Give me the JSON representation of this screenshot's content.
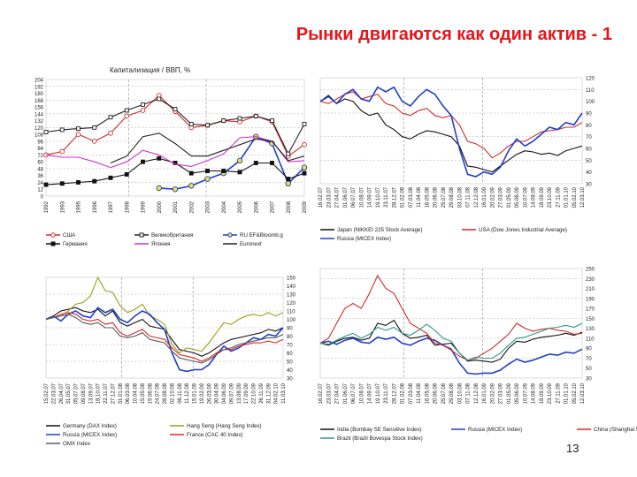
{
  "slide": {
    "title": "Рынки двигаются как один актив - 1",
    "page_number": "13"
  },
  "chart_data": [
    {
      "type": "line",
      "title": "Капитализация / ВВП, %",
      "x": [
        "1992",
        "1993",
        "1995",
        "1996",
        "1997",
        "1998",
        "1999",
        "2000",
        "2001",
        "2002",
        "2003",
        "2004",
        "2005",
        "2006",
        "2007",
        "2008",
        "2009"
      ],
      "ylim": [
        0,
        204
      ],
      "y_ticks": [
        "0",
        "12",
        "24",
        "36",
        "48",
        "60",
        "72",
        "84",
        "96",
        "108",
        "120",
        "132",
        "144",
        "156",
        "168",
        "180",
        "192",
        "204"
      ],
      "series": [
        {
          "name": "США",
          "color": "#d42a2a",
          "marker": "circle",
          "values": [
            72,
            78,
            108,
            96,
            110,
            140,
            150,
            176,
            148,
            120,
            124,
            132,
            130,
            140,
            130,
            70,
            90
          ]
        },
        {
          "name": "Великобритания",
          "color": "#222222",
          "marker": "square",
          "values": [
            112,
            116,
            118,
            120,
            138,
            150,
            160,
            170,
            152,
            126,
            124,
            132,
            136,
            140,
            132,
            74,
            126
          ]
        },
        {
          "name": "RU EF&Bloomb.g",
          "color": "#1f3fc8",
          "marker": "circle-yellow",
          "values": [
            null,
            null,
            null,
            null,
            null,
            null,
            null,
            14,
            12,
            18,
            30,
            40,
            62,
            104,
            92,
            22,
            50
          ]
        },
        {
          "name": "Германия",
          "color": "#111111",
          "marker": "square-black",
          "values": [
            20,
            22,
            24,
            26,
            32,
            38,
            60,
            66,
            58,
            40,
            44,
            44,
            42,
            58,
            58,
            30,
            40
          ]
        },
        {
          "name": "Япония",
          "color": "#d62fc8",
          "marker": "none",
          "values": [
            72,
            68,
            68,
            60,
            50,
            60,
            80,
            72,
            56,
            52,
            62,
            74,
            102,
            104,
            96,
            60,
            62
          ]
        },
        {
          "name": "Euronext",
          "color": "#222222",
          "marker": "none",
          "values": [
            null,
            null,
            null,
            null,
            58,
            70,
            104,
            110,
            92,
            70,
            70,
            80,
            90,
            100,
            96,
            62,
            70
          ]
        }
      ]
    },
    {
      "type": "line",
      "x": [
        "16.02.07",
        "23.03.07",
        "27.04.07",
        "01.06.07",
        "06.07.07",
        "10.08.07",
        "14.09.07",
        "19.10.07",
        "23.11.07",
        "28.12.07",
        "01.02.08",
        "07.03.08",
        "11.04.08",
        "16.05.08",
        "20.06.08",
        "25.07.08",
        "29.08.08",
        "03.10.08",
        "07.11.08",
        "12.12.08",
        "16.01.09",
        "20.02.09",
        "27.03.09",
        "01.05.09",
        "05.06.09",
        "10.07.09",
        "14.08.09",
        "18.09.09",
        "23.10.09",
        "27.11.09",
        "01.01.10",
        "05.02.10",
        "12.03.10"
      ],
      "ylim": [
        30,
        120
      ],
      "y_ticks": [
        "30",
        "40",
        "50",
        "60",
        "70",
        "80",
        "90",
        "100",
        "110",
        "120"
      ],
      "series": [
        {
          "name": "Japan (NIKKEI 225 Stock Average)",
          "color": "#111111",
          "values": [
            100,
            105,
            98,
            102,
            100,
            92,
            88,
            90,
            80,
            76,
            70,
            68,
            72,
            75,
            74,
            72,
            70,
            62,
            45,
            44,
            42,
            40,
            45,
            50,
            55,
            58,
            57,
            55,
            56,
            54,
            58,
            60,
            62
          ]
        },
        {
          "name": "USA (Dow Jones Industrial Average)",
          "color": "#d42a2a",
          "values": [
            100,
            98,
            102,
            106,
            108,
            102,
            104,
            106,
            98,
            96,
            90,
            88,
            92,
            94,
            88,
            86,
            88,
            80,
            66,
            64,
            60,
            52,
            56,
            62,
            66,
            66,
            70,
            74,
            75,
            76,
            78,
            78,
            82
          ]
        },
        {
          "name": "Russia (MICEX Index)",
          "color": "#1f3fc8",
          "values": [
            100,
            104,
            98,
            106,
            110,
            102,
            100,
            112,
            108,
            112,
            100,
            96,
            104,
            110,
            106,
            96,
            88,
            60,
            38,
            36,
            40,
            38,
            44,
            58,
            68,
            62,
            66,
            72,
            78,
            76,
            82,
            80,
            90
          ]
        }
      ]
    },
    {
      "type": "line",
      "x": [
        "15.02.07",
        "22.03.07",
        "26.04.07",
        "31.05.07",
        "05.07.07",
        "09.08.07",
        "13.09.07",
        "18.10.07",
        "22.11.07",
        "27.12.07",
        "31.01.08",
        "06.03.08",
        "10.04.08",
        "15.05.08",
        "19.06.08",
        "24.07.08",
        "28.08.08",
        "02.10.08",
        "06.11.08",
        "11.12.08",
        "15.01.09",
        "19.02.09",
        "26.03.09",
        "30.04.09",
        "04.06.09",
        "09.07.09",
        "13.08.09",
        "17.09.09",
        "22.10.09",
        "26.11.09",
        "31.12.09",
        "04.02.10",
        "11.03.10"
      ],
      "ylim": [
        30,
        150
      ],
      "y_ticks": [
        "30",
        "40",
        "50",
        "60",
        "70",
        "80",
        "90",
        "100",
        "110",
        "120",
        "130",
        "140",
        "150"
      ],
      "series": [
        {
          "name": "Germany (DAX Index)",
          "color": "#111111",
          "values": [
            100,
            104,
            110,
            112,
            114,
            110,
            108,
            112,
            104,
            110,
            96,
            92,
            96,
            100,
            92,
            90,
            88,
            76,
            64,
            62,
            60,
            56,
            60,
            66,
            72,
            76,
            78,
            80,
            82,
            84,
            88,
            86,
            90
          ]
        },
        {
          "name": "Hang Seng (Hang Seng Index)",
          "color": "#9aa01a",
          "values": [
            100,
            102,
            104,
            110,
            118,
            120,
            128,
            150,
            134,
            132,
            116,
            108,
            112,
            118,
            104,
            100,
            94,
            70,
            60,
            66,
            64,
            62,
            72,
            84,
            96,
            94,
            100,
            104,
            106,
            104,
            108,
            104,
            108
          ]
        },
        {
          "name": "Russia (MICEX Index)",
          "color": "#1f3fc8",
          "values": [
            100,
            104,
            98,
            106,
            110,
            104,
            102,
            114,
            108,
            112,
            100,
            96,
            104,
            110,
            106,
            96,
            88,
            60,
            40,
            38,
            40,
            40,
            46,
            58,
            68,
            62,
            66,
            72,
            78,
            76,
            82,
            80,
            90
          ]
        },
        {
          "name": "France (CAC 40 Index)",
          "color": "#d42a2a",
          "values": [
            100,
            102,
            106,
            108,
            106,
            100,
            98,
            100,
            94,
            96,
            84,
            80,
            84,
            88,
            80,
            78,
            76,
            66,
            58,
            56,
            54,
            50,
            54,
            60,
            64,
            64,
            68,
            70,
            72,
            72,
            74,
            72,
            76
          ]
        },
        {
          "name": "OMX Index",
          "color": "#5a5a5a",
          "values": [
            100,
            102,
            104,
            106,
            102,
            96,
            94,
            96,
            90,
            90,
            80,
            78,
            80,
            84,
            76,
            74,
            72,
            62,
            54,
            52,
            50,
            48,
            52,
            58,
            64,
            66,
            70,
            72,
            74,
            76,
            78,
            78,
            82
          ]
        }
      ]
    },
    {
      "type": "line",
      "x": [
        "16.02.07",
        "23.03.07",
        "27.04.07",
        "01.06.07",
        "06.07.07",
        "10.08.07",
        "14.09.07",
        "19.10.07",
        "23.11.07",
        "28.12.07",
        "01.02.08",
        "07.03.08",
        "11.04.08",
        "16.05.08",
        "20.06.08",
        "25.07.08",
        "29.08.08",
        "03.10.08",
        "07.11.08",
        "12.12.08",
        "16.01.09",
        "20.02.09",
        "27.03.09",
        "01.05.09",
        "05.06.09",
        "10.07.09",
        "14.08.09",
        "18.09.09",
        "23.10.09",
        "27.11.09",
        "01.01.10",
        "05.02.10",
        "12.03.10"
      ],
      "ylim": [
        30,
        250
      ],
      "y_ticks": [
        "30",
        "50",
        "70",
        "90",
        "110",
        "130",
        "150",
        "170",
        "190",
        "210",
        "230",
        "250"
      ],
      "series": [
        {
          "name": "India (Bombay SE Sensitive Index)",
          "color": "#111111",
          "values": [
            100,
            96,
            104,
            110,
            112,
            106,
            110,
            140,
            136,
            146,
            120,
            110,
            112,
            116,
            96,
            98,
            100,
            80,
            64,
            66,
            64,
            62,
            68,
            90,
            104,
            102,
            108,
            112,
            114,
            116,
            120,
            116,
            122
          ]
        },
        {
          "name": "Russia (MICEX Index)",
          "color": "#1f3fc8",
          "values": [
            100,
            104,
            98,
            106,
            110,
            102,
            100,
            112,
            108,
            112,
            100,
            96,
            104,
            110,
            106,
            96,
            88,
            60,
            40,
            38,
            40,
            40,
            46,
            58,
            68,
            62,
            66,
            72,
            78,
            76,
            82,
            80,
            88
          ]
        },
        {
          "name": "China (Shanghai 50 Composite Index)",
          "color": "#d42a2a",
          "values": [
            100,
            110,
            140,
            170,
            180,
            170,
            200,
            236,
            210,
            200,
            170,
            140,
            130,
            120,
            100,
            96,
            86,
            74,
            66,
            70,
            80,
            90,
            104,
            118,
            140,
            130,
            124,
            128,
            130,
            126,
            124,
            118,
            120
          ]
        },
        {
          "name": "Brazil (Brazil Bovespa Stock Index)",
          "color": "#2a9a8a",
          "values": [
            100,
            98,
            106,
            114,
            120,
            110,
            118,
            132,
            126,
            132,
            120,
            116,
            126,
            138,
            126,
            110,
            104,
            80,
            66,
            72,
            70,
            70,
            80,
            96,
            110,
            112,
            118,
            124,
            130,
            132,
            136,
            132,
            140
          ]
        }
      ]
    }
  ]
}
